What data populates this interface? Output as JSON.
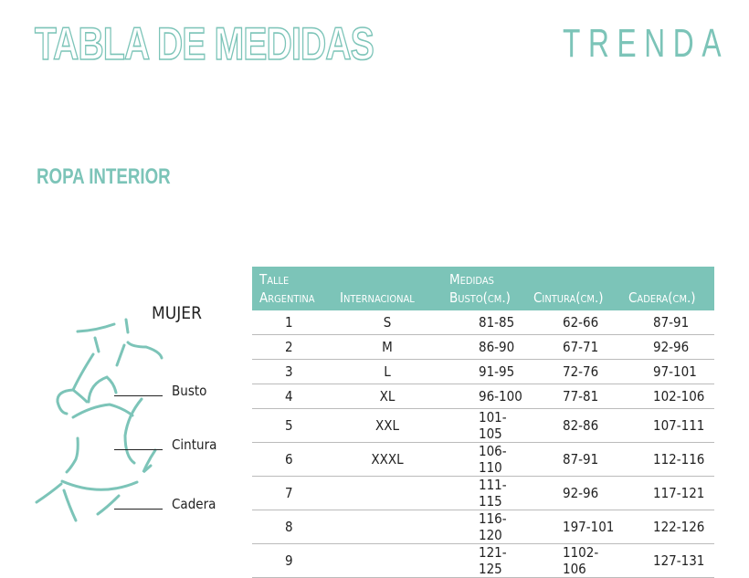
{
  "header": {
    "title": "TABLA DE MEDIDAS",
    "brand": "TRENDA"
  },
  "section": "ROPA INTERIOR",
  "colors": {
    "accent": "#7cc4b8",
    "text": "#222222",
    "row_divider": "#bbbbbb"
  },
  "figure": {
    "title": "MUJER",
    "labels": [
      "Busto",
      "Cintura",
      "Cadera"
    ],
    "icon": "woman-body-outline"
  },
  "table": {
    "headers": [
      {
        "line1": "Talle",
        "line2": "Argentina"
      },
      {
        "line1": "",
        "line2": "Internacional"
      },
      {
        "line1": "Medidas",
        "line2": "Busto(cm.)"
      },
      {
        "line1": "",
        "line2": "Cintura(cm.)"
      },
      {
        "line1": "",
        "line2": "Cadera(cm.)"
      }
    ],
    "rows": [
      [
        "1",
        "S",
        "81-85",
        "62-66",
        "87-91"
      ],
      [
        "2",
        "M",
        "86-90",
        "67-71",
        "92-96"
      ],
      [
        "3",
        "L",
        "91-95",
        "72-76",
        "97-101"
      ],
      [
        "4",
        "XL",
        "96-100",
        "77-81",
        "102-106"
      ],
      [
        "5",
        "XXL",
        "101-105",
        "82-86",
        "107-111"
      ],
      [
        "6",
        "XXXL",
        "106-110",
        "87-91",
        "112-116"
      ],
      [
        "7",
        "",
        "111-115",
        "92-96",
        "117-121"
      ],
      [
        "8",
        "",
        "116-120",
        "197-101",
        "122-126"
      ],
      [
        "9",
        "",
        "121-125",
        "1102-106",
        "127-131"
      ]
    ]
  }
}
